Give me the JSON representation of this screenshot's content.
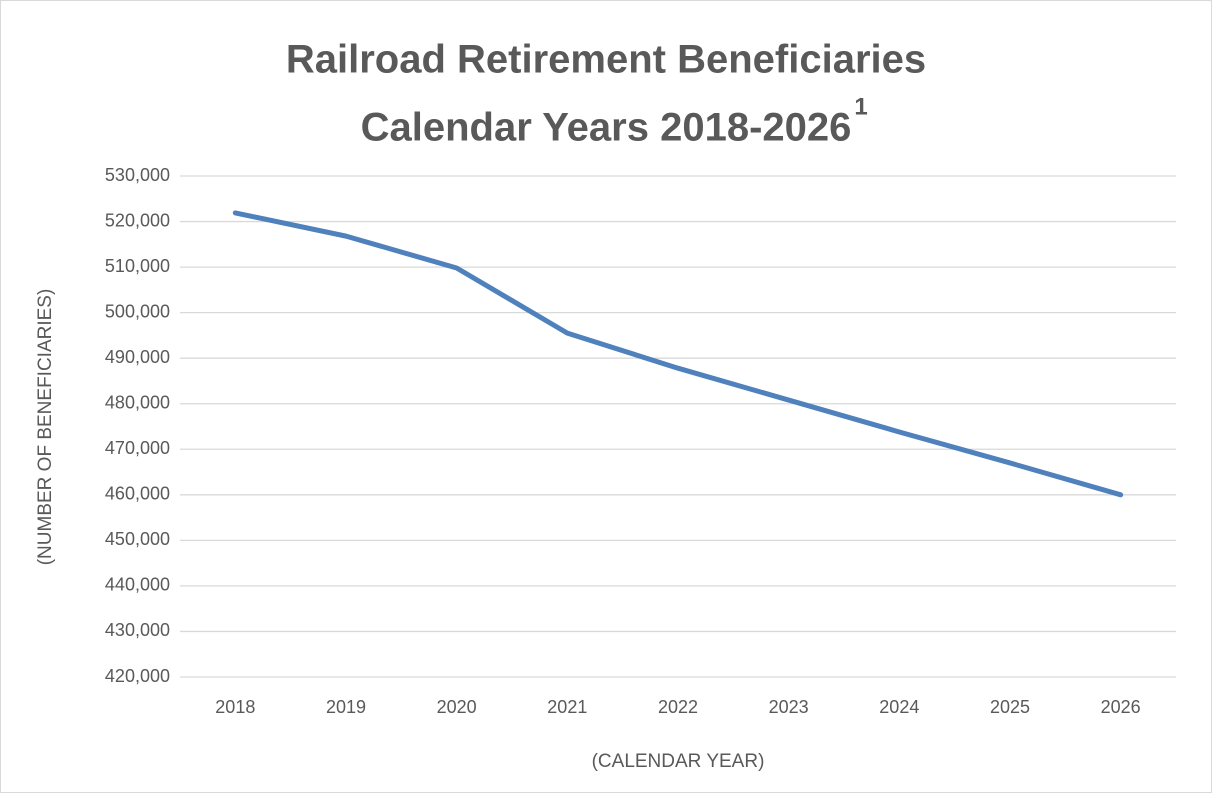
{
  "chart_data": {
    "type": "line",
    "title": [
      "Railroad Retirement Beneficiaries",
      "Calendar Years 2018-2026"
    ],
    "title_superscript": "1",
    "x_label": "(CALENDAR YEAR)",
    "y_label": "(NUMBER OF BENEFICIARIES)",
    "categories": [
      "2018",
      "2019",
      "2020",
      "2021",
      "2022",
      "2023",
      "2024",
      "2025",
      "2026"
    ],
    "series": [
      {
        "name": "Beneficiaries",
        "color": "#4f81bd",
        "values": [
          521900,
          516800,
          509800,
          495500,
          487800,
          480800,
          473800,
          467000,
          460000
        ]
      }
    ],
    "ylim": [
      420000,
      530000
    ],
    "yticks": [
      {
        "value": 420000,
        "label": "420,000"
      },
      {
        "value": 430000,
        "label": "430,000"
      },
      {
        "value": 440000,
        "label": "440,000"
      },
      {
        "value": 450000,
        "label": "450,000"
      },
      {
        "value": 460000,
        "label": "460,000"
      },
      {
        "value": 470000,
        "label": "470,000"
      },
      {
        "value": 480000,
        "label": "480,000"
      },
      {
        "value": 490000,
        "label": "490,000"
      },
      {
        "value": 500000,
        "label": "500,000"
      },
      {
        "value": 510000,
        "label": "510,000"
      },
      {
        "value": 520000,
        "label": "520,000"
      },
      {
        "value": 530000,
        "label": "530,000"
      }
    ],
    "grid": true
  }
}
